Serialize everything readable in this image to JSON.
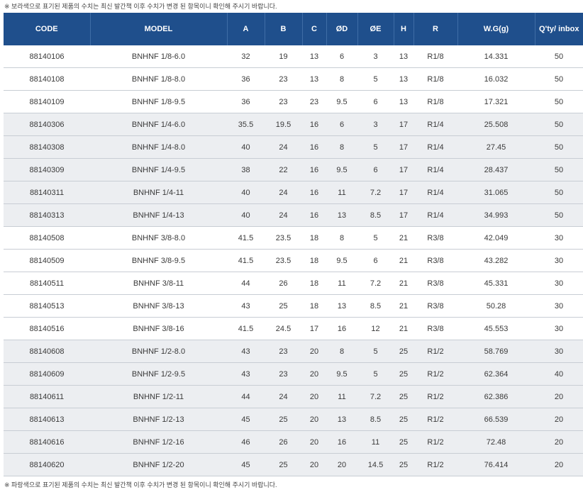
{
  "notes": {
    "top": "※ 보라색으로 표기된 제품의 수치는 최신 발간책 이후 수치가 변경 된 항목이니 확인해 주시기 바랍니다.",
    "bottom": "※ 파랑색으로 표기된 제품의 수치는 최신 발간책 이후 수치가 변경 된 항목이니 확인해 주시기 바랍니다."
  },
  "colors": {
    "header_bg": "#1f4f8c",
    "header_text": "#ffffff",
    "row_shade": "#eceef1",
    "row_plain": "#ffffff",
    "divider": "#c8cdd4"
  },
  "table": {
    "headers": [
      "CODE",
      "MODEL",
      "A",
      "B",
      "C",
      "ØD",
      "ØE",
      "H",
      "R",
      "W.G(g)",
      "Q'ty/ inbox"
    ],
    "rows": [
      [
        "88140106",
        "BNHNF 1/8-6.0",
        "32",
        "19",
        "13",
        "6",
        "3",
        "13",
        "R1/8",
        "14.331",
        "50"
      ],
      [
        "88140108",
        "BNHNF 1/8-8.0",
        "36",
        "23",
        "13",
        "8",
        "5",
        "13",
        "R1/8",
        "16.032",
        "50"
      ],
      [
        "88140109",
        "BNHNF 1/8-9.5",
        "36",
        "23",
        "23",
        "9.5",
        "6",
        "13",
        "R1/8",
        "17.321",
        "50"
      ],
      [
        "88140306",
        "BNHNF 1/4-6.0",
        "35.5",
        "19.5",
        "16",
        "6",
        "3",
        "17",
        "R1/4",
        "25.508",
        "50"
      ],
      [
        "88140308",
        "BNHNF 1/4-8.0",
        "40",
        "24",
        "16",
        "8",
        "5",
        "17",
        "R1/4",
        "27.45",
        "50"
      ],
      [
        "88140309",
        "BNHNF 1/4-9.5",
        "38",
        "22",
        "16",
        "9.5",
        "6",
        "17",
        "R1/4",
        "28.437",
        "50"
      ],
      [
        "88140311",
        "BNHNF 1/4-11",
        "40",
        "24",
        "16",
        "11",
        "7.2",
        "17",
        "R1/4",
        "31.065",
        "50"
      ],
      [
        "88140313",
        "BNHNF 1/4-13",
        "40",
        "24",
        "16",
        "13",
        "8.5",
        "17",
        "R1/4",
        "34.993",
        "50"
      ],
      [
        "88140508",
        "BNHNF 3/8-8.0",
        "41.5",
        "23.5",
        "18",
        "8",
        "5",
        "21",
        "R3/8",
        "42.049",
        "30"
      ],
      [
        "88140509",
        "BNHNF 3/8-9.5",
        "41.5",
        "23.5",
        "18",
        "9.5",
        "6",
        "21",
        "R3/8",
        "43.282",
        "30"
      ],
      [
        "88140511",
        "BNHNF 3/8-11",
        "44",
        "26",
        "18",
        "11",
        "7.2",
        "21",
        "R3/8",
        "45.331",
        "30"
      ],
      [
        "88140513",
        "BNHNF 3/8-13",
        "43",
        "25",
        "18",
        "13",
        "8.5",
        "21",
        "R3/8",
        "50.28",
        "30"
      ],
      [
        "88140516",
        "BNHNF 3/8-16",
        "41.5",
        "24.5",
        "17",
        "16",
        "12",
        "21",
        "R3/8",
        "45.553",
        "30"
      ],
      [
        "88140608",
        "BNHNF 1/2-8.0",
        "43",
        "23",
        "20",
        "8",
        "5",
        "25",
        "R1/2",
        "58.769",
        "30"
      ],
      [
        "88140609",
        "BNHNF 1/2-9.5",
        "43",
        "23",
        "20",
        "9.5",
        "5",
        "25",
        "R1/2",
        "62.364",
        "40"
      ],
      [
        "88140611",
        "BNHNF 1/2-11",
        "44",
        "24",
        "20",
        "11",
        "7.2",
        "25",
        "R1/2",
        "62.386",
        "20"
      ],
      [
        "88140613",
        "BNHNF 1/2-13",
        "45",
        "25",
        "20",
        "13",
        "8.5",
        "25",
        "R1/2",
        "66.539",
        "20"
      ],
      [
        "88140616",
        "BNHNF 1/2-16",
        "46",
        "26",
        "20",
        "16",
        "11",
        "25",
        "R1/2",
        "72.48",
        "20"
      ],
      [
        "88140620",
        "BNHNF 1/2-20",
        "45",
        "25",
        "20",
        "20",
        "14.5",
        "25",
        "R1/2",
        "76.414",
        "20"
      ]
    ]
  }
}
